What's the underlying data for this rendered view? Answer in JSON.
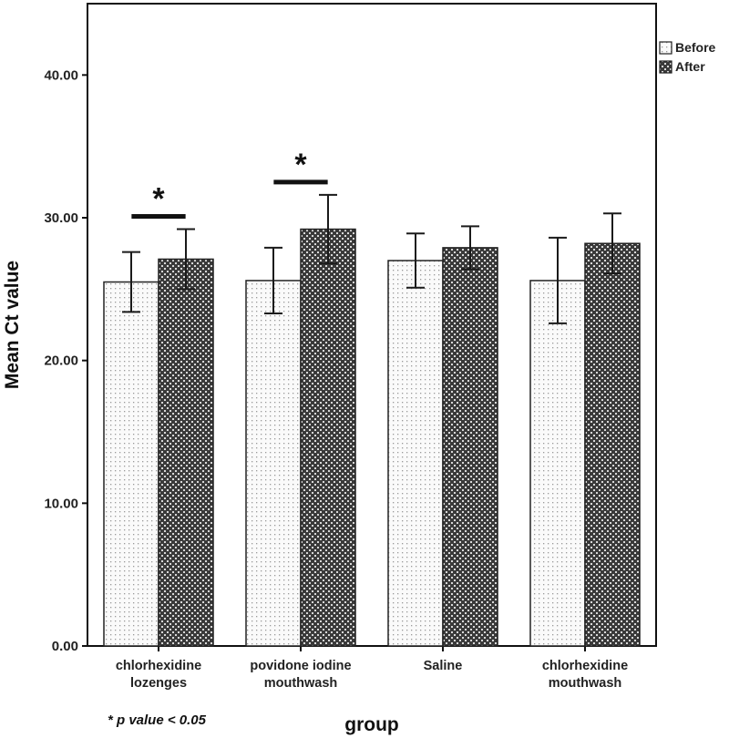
{
  "chart_data": {
    "type": "bar",
    "title": "",
    "xlabel": "group",
    "ylabel": "Mean Ct value",
    "ylim": [
      0,
      45
    ],
    "yticks": [
      0,
      10,
      20,
      30,
      40
    ],
    "ytick_labels": [
      "0.00",
      "10.00",
      "20.00",
      "30.00",
      "40.00"
    ],
    "grid": false,
    "legend_position": "top-right",
    "categories": [
      [
        "chlorhexidine",
        "lozenges"
      ],
      [
        "povidone iodine",
        "mouthwash"
      ],
      [
        "Saline"
      ],
      [
        "chlorhexidine",
        "mouthwash"
      ]
    ],
    "series": [
      {
        "name": "Before",
        "pattern": "light-dots",
        "values": [
          25.5,
          25.6,
          27.0,
          25.6
        ],
        "error": [
          2.1,
          2.3,
          1.9,
          3.0
        ]
      },
      {
        "name": "After",
        "pattern": "dark-checker",
        "values": [
          27.1,
          29.2,
          27.9,
          28.2
        ],
        "error": [
          2.1,
          2.4,
          1.5,
          2.1
        ]
      }
    ],
    "significance": [
      {
        "category_index": 0,
        "label": "*"
      },
      {
        "category_index": 1,
        "label": "*"
      }
    ],
    "footnote": "* p value < 0.05"
  }
}
